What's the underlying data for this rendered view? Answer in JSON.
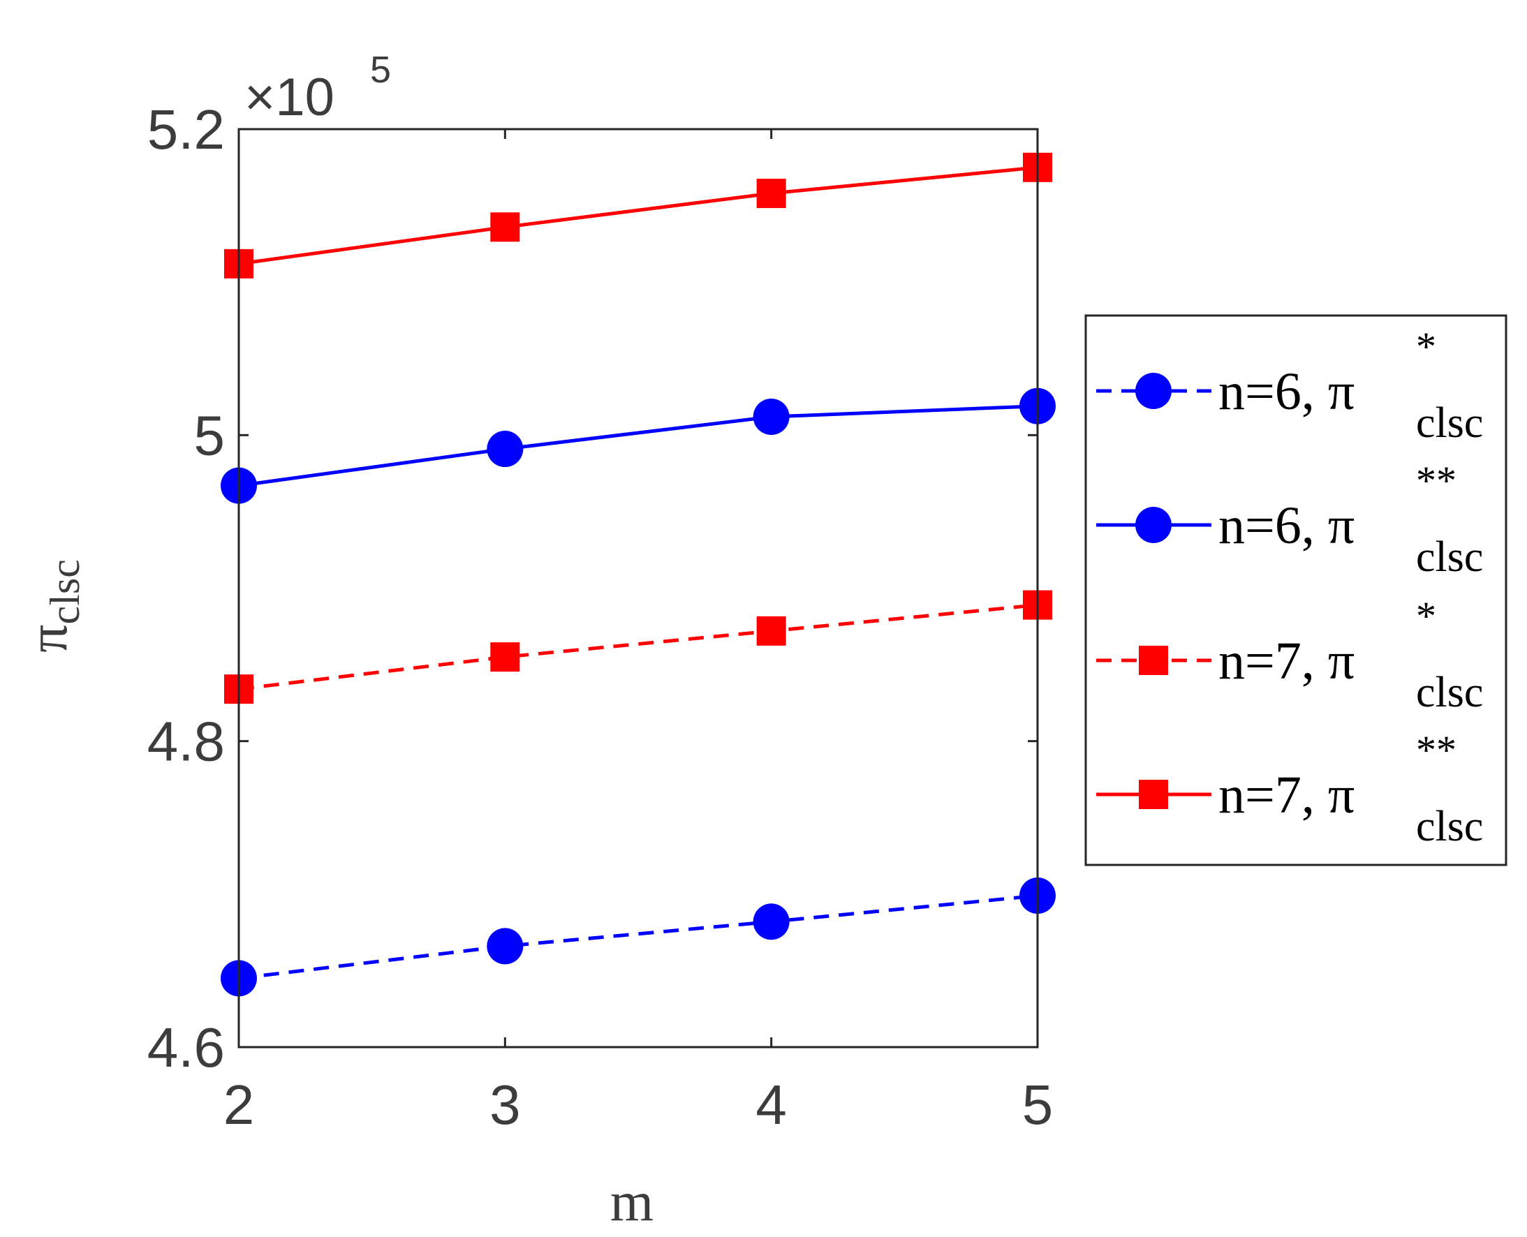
{
  "chart_data": {
    "type": "line",
    "xlabel": "m",
    "ylabel": {
      "symbol": "π",
      "subscript": "clsc"
    },
    "y_exponent": {
      "prefix": "×10",
      "power": "5"
    },
    "x": [
      2,
      3,
      4,
      5
    ],
    "xticks": [
      2,
      3,
      4,
      5
    ],
    "xlim": [
      2,
      5
    ],
    "yticks": [
      4.6,
      4.8,
      5,
      5.2
    ],
    "ytick_labels": [
      "4.6",
      "4.8",
      "5",
      "5.2"
    ],
    "ylim": [
      4.6,
      5.2
    ],
    "grid": false,
    "legend_position": "outside-right",
    "series": [
      {
        "label_prefix": "n=6, ",
        "symbol": "π",
        "sup": "*",
        "sub": "clsc",
        "color": "#0000ff",
        "line": "dashed",
        "marker": "circle",
        "values": [
          4.645,
          4.666,
          4.682,
          4.699
        ]
      },
      {
        "label_prefix": "n=6, ",
        "symbol": "π",
        "sup": "**",
        "sub": "clsc",
        "color": "#0000ff",
        "line": "solid",
        "marker": "circle",
        "values": [
          4.967,
          4.991,
          5.012,
          5.019
        ]
      },
      {
        "label_prefix": "n=7, ",
        "symbol": "π",
        "sup": "*",
        "sub": "clsc",
        "color": "#ff0000",
        "line": "dashed",
        "marker": "square",
        "values": [
          4.834,
          4.855,
          4.872,
          4.889
        ]
      },
      {
        "label_prefix": "n=7, ",
        "symbol": "π",
        "sup": "**",
        "sub": "clsc",
        "color": "#ff0000",
        "line": "solid",
        "marker": "square",
        "values": [
          5.112,
          5.136,
          5.158,
          5.175
        ]
      }
    ]
  }
}
